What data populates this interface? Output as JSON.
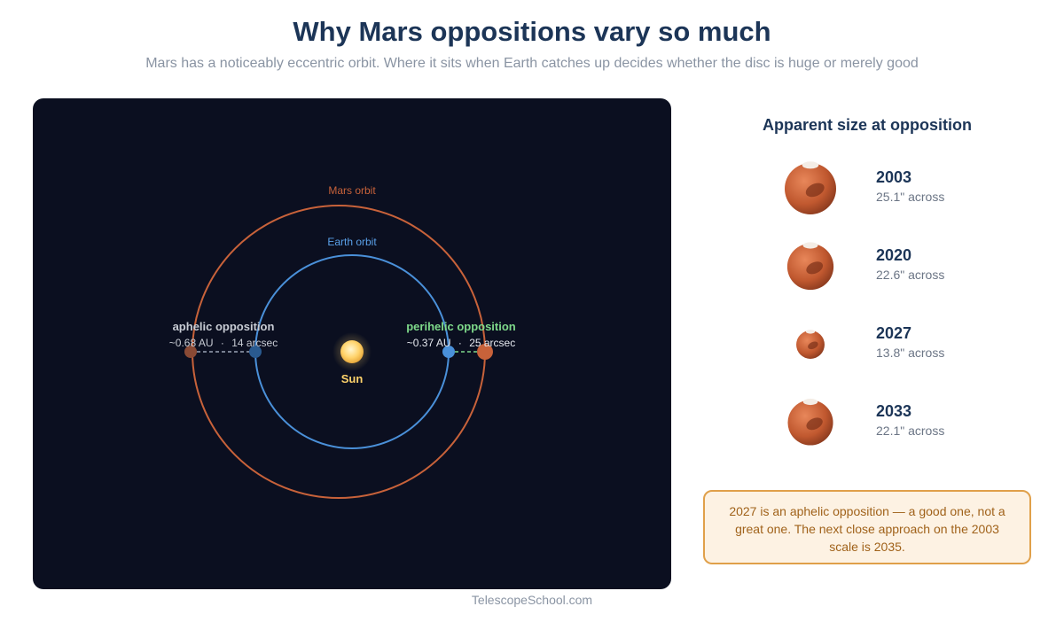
{
  "title": "Why Mars oppositions vary so much",
  "subtitle": "Mars has a noticeably eccentric orbit. Where it sits when Earth catches up decides whether the disc is huge or merely good",
  "diagram": {
    "mars_orbit_label": "Mars orbit",
    "earth_orbit_label": "Earth orbit",
    "sun_label": "Sun",
    "aphelic": {
      "label": "aphelic opposition",
      "distance": "~0.68 AU",
      "size": "14 arcsec"
    },
    "perihelic": {
      "label": "perihelic opposition",
      "distance": "~0.37 AU",
      "size": "25 arcsec"
    },
    "separator": "·"
  },
  "sidebar": {
    "title": "Apparent size at opposition",
    "rows": [
      {
        "year": "2003",
        "size_text": "25.1\" across",
        "arcsec": 25.1
      },
      {
        "year": "2020",
        "size_text": "22.6\" across",
        "arcsec": 22.6
      },
      {
        "year": "2027",
        "size_text": "13.8\" across",
        "arcsec": 13.8
      },
      {
        "year": "2033",
        "size_text": "22.1\" across",
        "arcsec": 22.1
      }
    ]
  },
  "note": "2027 is an aphelic opposition — a good one, not a great one. The next close approach on the 2003 scale is 2035.",
  "credit": "TelescopeSchool.com",
  "colors": {
    "mars": "#c8623a",
    "earth": "#4a90d9",
    "sun": "#ffd36b",
    "perihelic_label": "#7ed98a",
    "aphelic_label": "#c8ccd4",
    "title": "#1c3557"
  }
}
